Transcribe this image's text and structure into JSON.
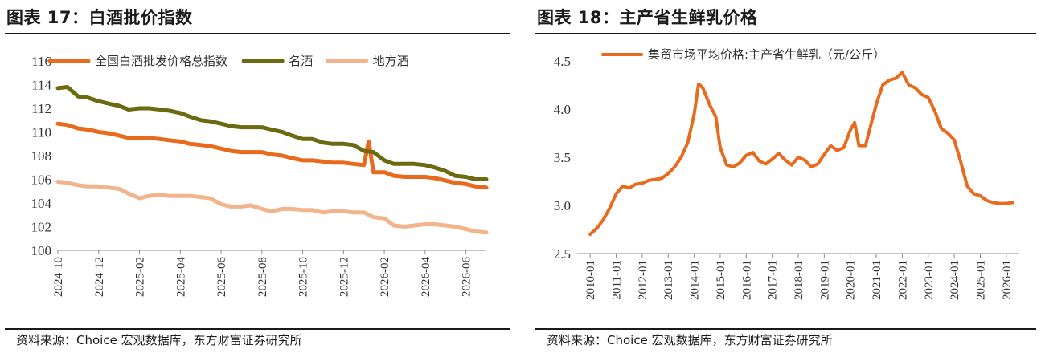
{
  "left": {
    "title": "图表 17：白酒批价指数",
    "source": "资料来源：Choice 宏观数据库，东方财富证券研究所"
  },
  "right": {
    "title": "图表 18：主产省生鲜乳价格",
    "source": "资料来源：Choice 宏观数据库，东方财富证券研究所"
  },
  "chart_data": [
    {
      "type": "line",
      "title": "",
      "xlabel": "",
      "ylabel": "",
      "x_ticks": [
        "2024-10",
        "2024-12",
        "2025-02",
        "2025-04",
        "2025-06",
        "2025-08",
        "2025-10",
        "2025-12",
        "2026-02",
        "2026-04",
        "2026-06"
      ],
      "y_ticks": [
        100,
        102,
        104,
        106,
        108,
        110,
        112,
        114,
        116
      ],
      "ylim": [
        100,
        116
      ],
      "x_range": [
        "2024-10",
        "2026-07"
      ],
      "grid": false,
      "legend": "top",
      "series": [
        {
          "name": "全国白酒批发价格总指数",
          "color": "#E86A1C",
          "points": [
            [
              "2024-10-01",
              110.7
            ],
            [
              "2024-10-15",
              110.6
            ],
            [
              "2024-11-01",
              110.3
            ],
            [
              "2024-11-15",
              110.2
            ],
            [
              "2024-12-01",
              110.0
            ],
            [
              "2024-12-15",
              109.9
            ],
            [
              "2025-01-01",
              109.7
            ],
            [
              "2025-01-15",
              109.5
            ],
            [
              "2025-02-01",
              109.5
            ],
            [
              "2025-02-15",
              109.5
            ],
            [
              "2025-03-01",
              109.4
            ],
            [
              "2025-03-15",
              109.3
            ],
            [
              "2025-04-01",
              109.2
            ],
            [
              "2025-04-15",
              109.0
            ],
            [
              "2025-05-01",
              108.9
            ],
            [
              "2025-05-15",
              108.8
            ],
            [
              "2025-06-01",
              108.6
            ],
            [
              "2025-06-15",
              108.4
            ],
            [
              "2025-07-01",
              108.3
            ],
            [
              "2025-07-15",
              108.3
            ],
            [
              "2025-08-01",
              108.3
            ],
            [
              "2025-08-15",
              108.1
            ],
            [
              "2025-09-01",
              108.0
            ],
            [
              "2025-09-15",
              107.8
            ],
            [
              "2025-10-01",
              107.6
            ],
            [
              "2025-10-15",
              107.6
            ],
            [
              "2025-11-01",
              107.5
            ],
            [
              "2025-11-15",
              107.4
            ],
            [
              "2025-12-01",
              107.4
            ],
            [
              "2025-12-15",
              107.3
            ],
            [
              "2026-01-01",
              107.2
            ],
            [
              "2026-01-08",
              109.2
            ],
            [
              "2026-01-15",
              106.6
            ],
            [
              "2026-02-01",
              106.6
            ],
            [
              "2026-02-15",
              106.3
            ],
            [
              "2026-03-01",
              106.2
            ],
            [
              "2026-03-15",
              106.2
            ],
            [
              "2026-04-01",
              106.2
            ],
            [
              "2026-04-15",
              106.1
            ],
            [
              "2026-05-01",
              105.9
            ],
            [
              "2026-05-15",
              105.7
            ],
            [
              "2026-06-01",
              105.6
            ],
            [
              "2026-06-15",
              105.4
            ],
            [
              "2026-07-01",
              105.3
            ]
          ]
        },
        {
          "name": "名酒",
          "color": "#6B6A11",
          "points": [
            [
              "2024-10-01",
              113.7
            ],
            [
              "2024-10-15",
              113.8
            ],
            [
              "2024-11-01",
              113.0
            ],
            [
              "2024-11-15",
              112.9
            ],
            [
              "2024-12-01",
              112.6
            ],
            [
              "2024-12-15",
              112.4
            ],
            [
              "2025-01-01",
              112.2
            ],
            [
              "2025-01-15",
              111.9
            ],
            [
              "2025-02-01",
              112.0
            ],
            [
              "2025-02-15",
              112.0
            ],
            [
              "2025-03-01",
              111.9
            ],
            [
              "2025-03-15",
              111.8
            ],
            [
              "2025-04-01",
              111.6
            ],
            [
              "2025-04-15",
              111.3
            ],
            [
              "2025-05-01",
              111.0
            ],
            [
              "2025-05-15",
              110.9
            ],
            [
              "2025-06-01",
              110.7
            ],
            [
              "2025-06-15",
              110.5
            ],
            [
              "2025-07-01",
              110.4
            ],
            [
              "2025-07-15",
              110.4
            ],
            [
              "2025-08-01",
              110.4
            ],
            [
              "2025-08-15",
              110.2
            ],
            [
              "2025-09-01",
              110.0
            ],
            [
              "2025-09-15",
              109.7
            ],
            [
              "2025-10-01",
              109.4
            ],
            [
              "2025-10-15",
              109.4
            ],
            [
              "2025-11-01",
              109.1
            ],
            [
              "2025-11-15",
              109.0
            ],
            [
              "2025-12-01",
              109.0
            ],
            [
              "2025-12-15",
              108.9
            ],
            [
              "2026-01-01",
              108.4
            ],
            [
              "2026-01-15",
              108.3
            ],
            [
              "2026-02-01",
              107.6
            ],
            [
              "2026-02-15",
              107.3
            ],
            [
              "2026-03-01",
              107.3
            ],
            [
              "2026-03-15",
              107.3
            ],
            [
              "2026-04-01",
              107.2
            ],
            [
              "2026-04-15",
              107.0
            ],
            [
              "2026-05-01",
              106.7
            ],
            [
              "2026-05-15",
              106.3
            ],
            [
              "2026-06-01",
              106.2
            ],
            [
              "2026-06-15",
              106.0
            ],
            [
              "2026-07-01",
              106.0
            ]
          ]
        },
        {
          "name": "地方酒",
          "color": "#F2B48C",
          "points": [
            [
              "2024-10-01",
              105.8
            ],
            [
              "2024-10-15",
              105.7
            ],
            [
              "2024-11-01",
              105.5
            ],
            [
              "2024-11-15",
              105.4
            ],
            [
              "2024-12-01",
              105.4
            ],
            [
              "2024-12-15",
              105.3
            ],
            [
              "2025-01-01",
              105.2
            ],
            [
              "2025-01-15",
              104.8
            ],
            [
              "2025-02-01",
              104.4
            ],
            [
              "2025-02-15",
              104.6
            ],
            [
              "2025-03-01",
              104.7
            ],
            [
              "2025-03-15",
              104.6
            ],
            [
              "2025-04-01",
              104.6
            ],
            [
              "2025-04-15",
              104.6
            ],
            [
              "2025-05-01",
              104.5
            ],
            [
              "2025-05-15",
              104.4
            ],
            [
              "2025-06-01",
              103.9
            ],
            [
              "2025-06-15",
              103.7
            ],
            [
              "2025-07-01",
              103.7
            ],
            [
              "2025-07-15",
              103.8
            ],
            [
              "2025-08-01",
              103.5
            ],
            [
              "2025-08-15",
              103.3
            ],
            [
              "2025-09-01",
              103.5
            ],
            [
              "2025-09-15",
              103.5
            ],
            [
              "2025-10-01",
              103.4
            ],
            [
              "2025-10-15",
              103.4
            ],
            [
              "2025-11-01",
              103.2
            ],
            [
              "2025-11-15",
              103.3
            ],
            [
              "2025-12-01",
              103.3
            ],
            [
              "2025-12-15",
              103.2
            ],
            [
              "2026-01-01",
              103.2
            ],
            [
              "2026-01-15",
              102.8
            ],
            [
              "2026-02-01",
              102.7
            ],
            [
              "2026-02-15",
              102.1
            ],
            [
              "2026-03-01",
              102.0
            ],
            [
              "2026-03-15",
              102.1
            ],
            [
              "2026-04-01",
              102.2
            ],
            [
              "2026-04-15",
              102.2
            ],
            [
              "2026-05-01",
              102.1
            ],
            [
              "2026-05-15",
              102.0
            ],
            [
              "2026-06-01",
              101.8
            ],
            [
              "2026-06-15",
              101.6
            ],
            [
              "2026-07-01",
              101.5
            ]
          ]
        }
      ]
    },
    {
      "type": "line",
      "title": "",
      "xlabel": "",
      "ylabel": "",
      "x_ticks": [
        "2010-01",
        "2011-01",
        "2012-01",
        "2013-01",
        "2014-01",
        "2015-01",
        "2016-01",
        "2017-01",
        "2018-01",
        "2019-01",
        "2020-01",
        "2021-01",
        "2022-01",
        "2023-01",
        "2024-01",
        "2025-01",
        "2026-01"
      ],
      "y_ticks": [
        2.5,
        3.0,
        3.5,
        4.0,
        4.5
      ],
      "ylim": [
        2.5,
        4.5
      ],
      "x_range": [
        "2009-07",
        "2026-07"
      ],
      "grid": false,
      "legend": "top",
      "series": [
        {
          "name": "集贸市场平均价格:主产省生鲜乳（元/公斤）",
          "color": "#E86A1C",
          "points": [
            [
              "2010-01",
              2.7
            ],
            [
              "2010-04",
              2.76
            ],
            [
              "2010-07",
              2.85
            ],
            [
              "2010-10",
              2.97
            ],
            [
              "2011-01",
              3.12
            ],
            [
              "2011-04",
              3.2
            ],
            [
              "2011-07",
              3.18
            ],
            [
              "2011-10",
              3.22
            ],
            [
              "2012-01",
              3.23
            ],
            [
              "2012-04",
              3.26
            ],
            [
              "2012-07",
              3.27
            ],
            [
              "2012-10",
              3.28
            ],
            [
              "2013-01",
              3.33
            ],
            [
              "2013-04",
              3.4
            ],
            [
              "2013-07",
              3.5
            ],
            [
              "2013-10",
              3.65
            ],
            [
              "2014-01",
              3.95
            ],
            [
              "2014-03",
              4.26
            ],
            [
              "2014-05",
              4.22
            ],
            [
              "2014-08",
              4.05
            ],
            [
              "2014-11",
              3.92
            ],
            [
              "2015-01",
              3.6
            ],
            [
              "2015-04",
              3.42
            ],
            [
              "2015-07",
              3.4
            ],
            [
              "2015-10",
              3.44
            ],
            [
              "2016-01",
              3.52
            ],
            [
              "2016-04",
              3.55
            ],
            [
              "2016-07",
              3.46
            ],
            [
              "2016-10",
              3.43
            ],
            [
              "2017-01",
              3.48
            ],
            [
              "2017-04",
              3.54
            ],
            [
              "2017-07",
              3.47
            ],
            [
              "2017-10",
              3.42
            ],
            [
              "2018-01",
              3.5
            ],
            [
              "2018-04",
              3.47
            ],
            [
              "2018-07",
              3.4
            ],
            [
              "2018-10",
              3.43
            ],
            [
              "2019-01",
              3.53
            ],
            [
              "2019-04",
              3.62
            ],
            [
              "2019-07",
              3.57
            ],
            [
              "2019-10",
              3.6
            ],
            [
              "2020-01",
              3.78
            ],
            [
              "2020-03",
              3.86
            ],
            [
              "2020-05",
              3.62
            ],
            [
              "2020-08",
              3.62
            ],
            [
              "2020-11",
              3.88
            ],
            [
              "2021-01",
              4.05
            ],
            [
              "2021-04",
              4.25
            ],
            [
              "2021-07",
              4.3
            ],
            [
              "2021-10",
              4.32
            ],
            [
              "2022-01",
              4.38
            ],
            [
              "2022-04",
              4.25
            ],
            [
              "2022-07",
              4.22
            ],
            [
              "2022-10",
              4.15
            ],
            [
              "2023-01",
              4.12
            ],
            [
              "2023-04",
              3.98
            ],
            [
              "2023-07",
              3.8
            ],
            [
              "2023-10",
              3.75
            ],
            [
              "2024-01",
              3.68
            ],
            [
              "2024-04",
              3.45
            ],
            [
              "2024-07",
              3.2
            ],
            [
              "2024-10",
              3.12
            ],
            [
              "2025-01",
              3.1
            ],
            [
              "2025-04",
              3.05
            ],
            [
              "2025-07",
              3.03
            ],
            [
              "2025-10",
              3.02
            ],
            [
              "2026-01",
              3.02
            ],
            [
              "2026-04",
              3.03
            ]
          ]
        }
      ]
    }
  ]
}
